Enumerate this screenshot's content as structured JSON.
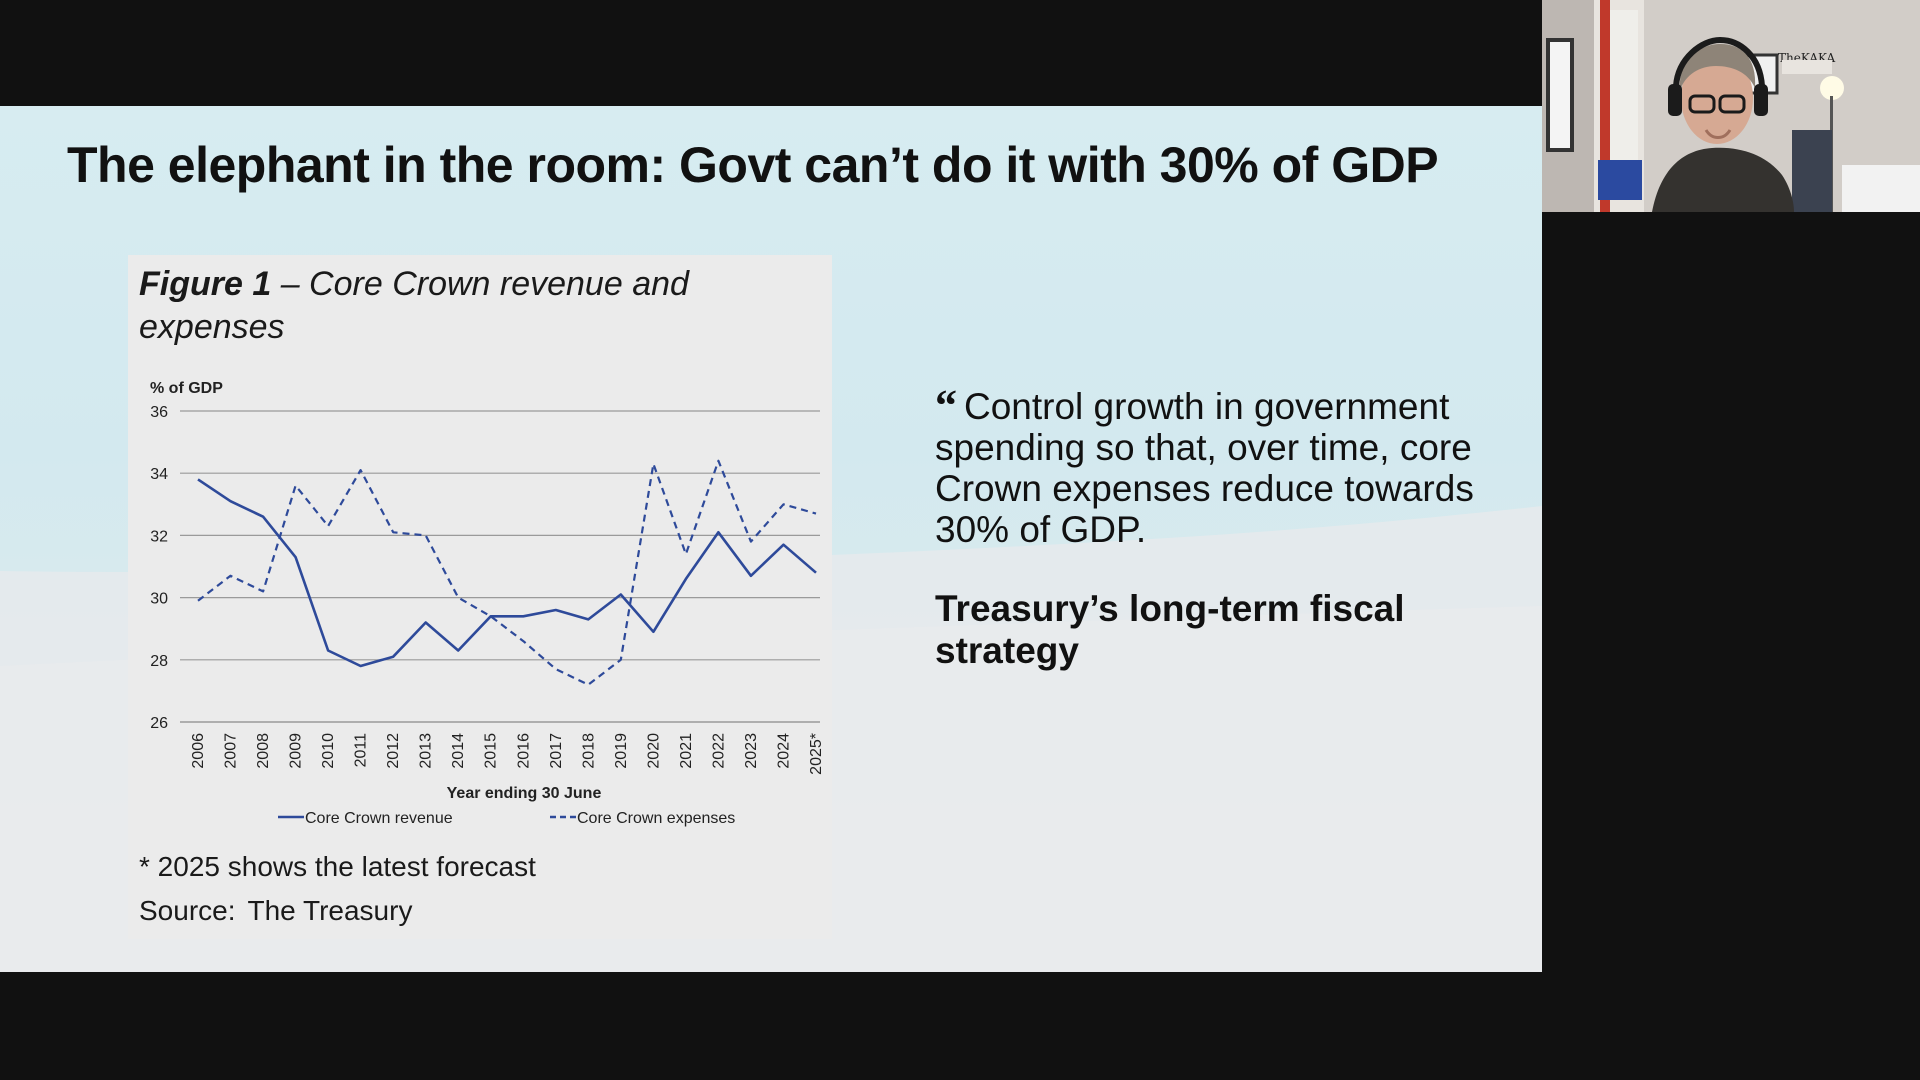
{
  "slide": {
    "title": "The elephant in the room: Govt can’t do it with 30% of GDP",
    "figure": {
      "caption_bold": "Figure 1",
      "caption_rest": " – Core Crown revenue and expenses",
      "footnote": "* 2025 shows the latest forecast",
      "source_label": "Source:",
      "source_value": "The Treasury"
    },
    "quote": {
      "mark": "“",
      "text": "Control growth in government spending so that, over time, core Crown expenses reduce towards 30% of GDP.",
      "attribution": "Treasury’s long-term fiscal strategy"
    }
  },
  "colors": {
    "series_color": "#2e4a9a",
    "grid_color": "#9a9a9a",
    "slide_accent": "#d4eaf0"
  },
  "webcam": {
    "poster_text": "TheKAKA"
  },
  "chart_data": {
    "type": "line",
    "title": "Figure 1 – Core Crown revenue and expenses",
    "ylabel": "% of GDP",
    "xlabel": "Year ending 30 June",
    "ylim": [
      26,
      36
    ],
    "yticks": [
      26,
      28,
      30,
      32,
      34,
      36
    ],
    "grid": true,
    "legend_position": "bottom",
    "categories": [
      "2006",
      "2007",
      "2008",
      "2009",
      "2010",
      "2011",
      "2012",
      "2013",
      "2014",
      "2015",
      "2016",
      "2017",
      "2018",
      "2019",
      "2020",
      "2021",
      "2022",
      "2023",
      "2024",
      "2025*"
    ],
    "series": [
      {
        "name": "Core Crown revenue",
        "style": "solid",
        "values": [
          33.8,
          33.1,
          32.6,
          31.3,
          28.3,
          27.8,
          28.1,
          29.2,
          28.3,
          29.4,
          29.4,
          29.6,
          29.3,
          30.1,
          28.9,
          30.6,
          32.1,
          30.7,
          31.7,
          30.8
        ]
      },
      {
        "name": "Core Crown expenses",
        "style": "dashed",
        "values": [
          29.9,
          30.7,
          30.2,
          33.6,
          32.3,
          34.1,
          32.1,
          32.0,
          30.0,
          29.4,
          28.6,
          27.7,
          27.2,
          28.0,
          34.3,
          31.4,
          34.4,
          31.8,
          33.0,
          32.7
        ]
      }
    ]
  }
}
